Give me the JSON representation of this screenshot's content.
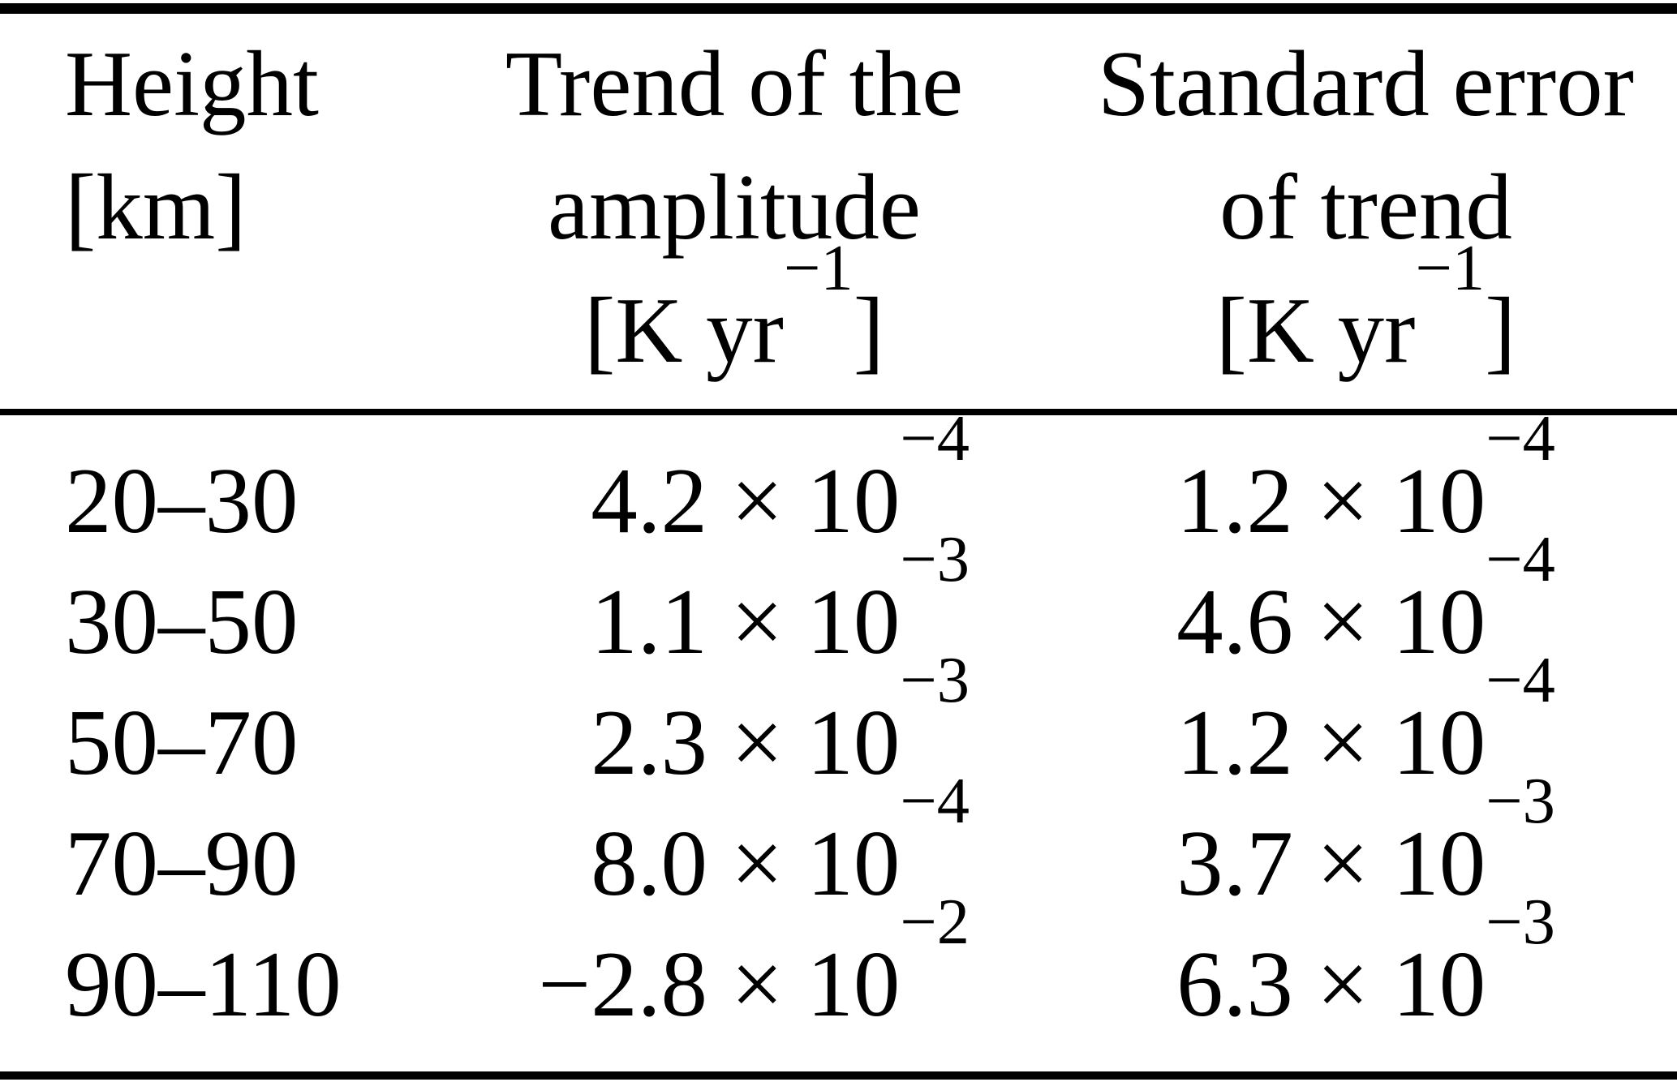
{
  "table": {
    "times_symbol": "×",
    "base": "10",
    "columns": [
      {
        "id": "height",
        "header_lines": [
          "Height",
          "[km]"
        ]
      },
      {
        "id": "trend",
        "header_lines": [
          "Trend of the",
          "amplitude"
        ],
        "unit": {
          "pre": "[K yr",
          "sup": "−1",
          "post": "]"
        }
      },
      {
        "id": "stderr",
        "header_lines": [
          "Standard error",
          "of trend"
        ],
        "unit": {
          "pre": "[K yr",
          "sup": "−1",
          "post": "]"
        }
      }
    ],
    "rows": [
      {
        "height": "20–30",
        "trend": {
          "mantissa": "4.2",
          "exp": "−4"
        },
        "stderr": {
          "mantissa": "1.2",
          "exp": "−4"
        }
      },
      {
        "height": "30–50",
        "trend": {
          "mantissa": "1.1",
          "exp": "−3"
        },
        "stderr": {
          "mantissa": "4.6",
          "exp": "−4"
        }
      },
      {
        "height": "50–70",
        "trend": {
          "mantissa": "2.3",
          "exp": "−3"
        },
        "stderr": {
          "mantissa": "1.2",
          "exp": "−4"
        }
      },
      {
        "height": "70–90",
        "trend": {
          "mantissa": "8.0",
          "exp": "−4"
        },
        "stderr": {
          "mantissa": "3.7",
          "exp": "−3"
        }
      },
      {
        "height": "90–110",
        "trend": {
          "mantissa": "−2.8",
          "exp": "−2"
        },
        "stderr": {
          "mantissa": "6.3",
          "exp": "−3"
        }
      }
    ]
  },
  "chart_data": {
    "type": "table",
    "columns": [
      "Height [km]",
      "Trend of the amplitude [K yr^-1]",
      "Standard error of trend [K yr^-1]"
    ],
    "rows": [
      [
        "20–30",
        0.00042,
        0.00012
      ],
      [
        "30–50",
        0.0011,
        0.00046
      ],
      [
        "50–70",
        0.0023,
        0.00012
      ],
      [
        "70–90",
        0.0008,
        0.0037
      ],
      [
        "90–110",
        -0.028,
        0.0063
      ]
    ]
  },
  "colors": {
    "background": "#ffffff",
    "text": "#000000",
    "rule": "#000000"
  }
}
